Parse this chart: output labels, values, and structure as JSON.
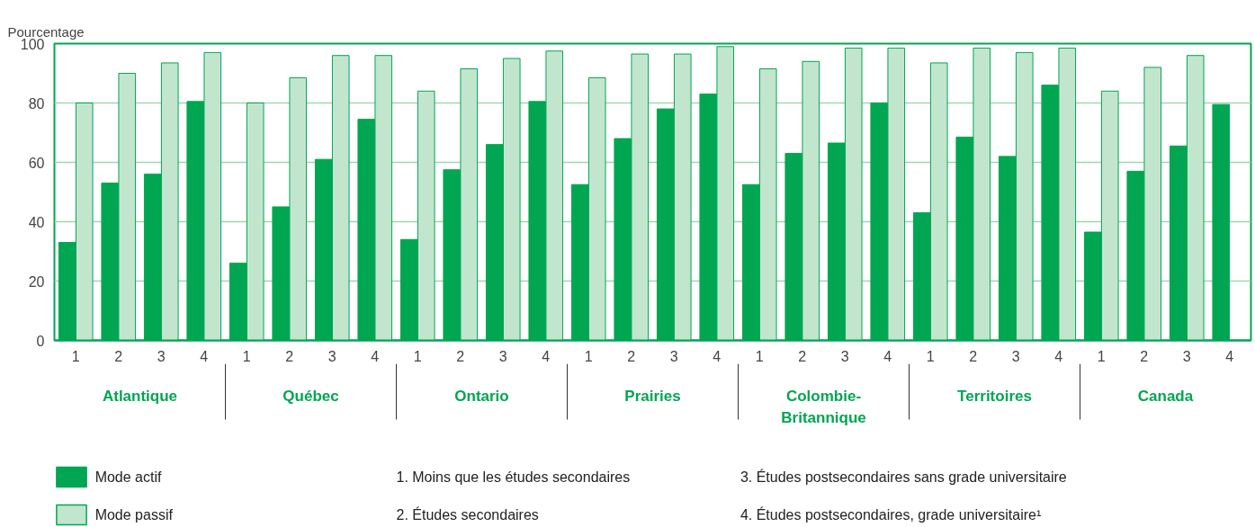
{
  "chart_data": {
    "type": "bar",
    "ylabel": "Pourcentage",
    "categories": [
      "1",
      "2",
      "3",
      "4",
      "1",
      "2",
      "3",
      "4",
      "1",
      "2",
      "3",
      "4",
      "1",
      "2",
      "3",
      "4",
      "1",
      "2",
      "3",
      "4",
      "1",
      "2",
      "3",
      "4",
      "1",
      "2",
      "3",
      "4"
    ],
    "series": [
      {
        "name": "Mode actif",
        "color": "#00a651",
        "values": [
          33,
          53,
          56,
          80.5,
          26,
          45,
          61,
          74.5,
          34,
          57.5,
          66,
          80.5,
          52.5,
          68,
          78,
          83,
          52.5,
          63,
          66.5,
          80,
          43,
          68.5,
          62,
          86,
          36.5,
          57,
          65.5,
          79.5
        ]
      },
      {
        "name": "Mode passif",
        "color": "#c2e6cd",
        "values": [
          80,
          90,
          93.5,
          97,
          80,
          88.5,
          96,
          96,
          84,
          91.5,
          95,
          97.5,
          88.5,
          96.5,
          96.5,
          99,
          91.5,
          94,
          98.5,
          98.5,
          93.5,
          98.5,
          97,
          98.5,
          84,
          92,
          96,
          null
        ]
      }
    ],
    "ylim": [
      0,
      100
    ],
    "yticks": [
      0,
      20,
      40,
      60,
      80,
      100
    ],
    "grid": "y",
    "legend": "bottom left",
    "annotations": [
      "Atlantique",
      "Québec",
      "Ontario",
      "Prairies",
      "Colombie-Britannique",
      "Territoires",
      "Canada",
      "1.   Moins que les études secondaires",
      "2.   Études secondaires",
      "3.   Études postsecondaires sans grade universitaire",
      "4.   Études postsecondaires, grade universitaire¹"
    ]
  }
}
